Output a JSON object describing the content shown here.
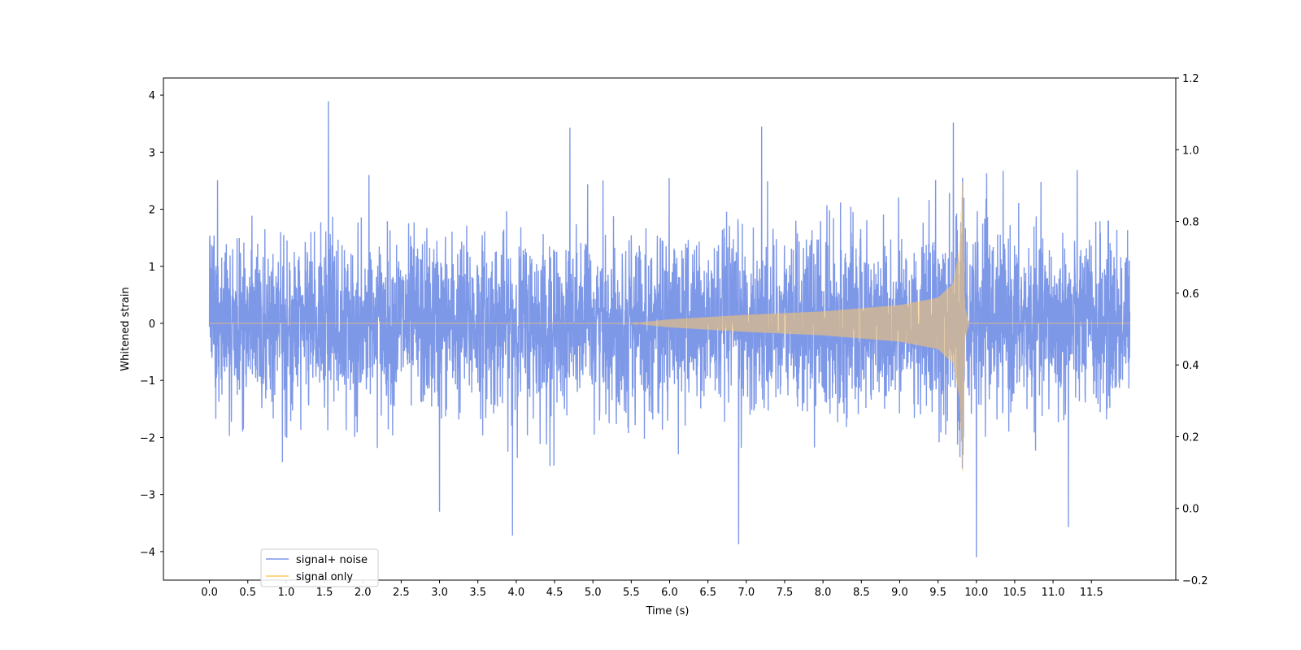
{
  "chart_data": {
    "type": "line",
    "title": "",
    "xlabel": "Time (s)",
    "ylabel": "Whitened strain",
    "xlim": [
      -0.6,
      12.6
    ],
    "ylim": [
      -4.5,
      4.3
    ],
    "y2lim": [
      -0.2,
      1.2
    ],
    "x_ticks": [
      0.0,
      0.5,
      1.0,
      1.5,
      2.0,
      2.5,
      3.0,
      3.5,
      4.0,
      4.5,
      5.0,
      5.5,
      6.0,
      6.5,
      7.0,
      7.5,
      8.0,
      8.5,
      9.0,
      9.5,
      10.0,
      10.5,
      11.0,
      11.5
    ],
    "x_tick_labels": [
      "0.0",
      "0.5",
      "1.0",
      "1.5",
      "2.0",
      "2.5",
      "3.0",
      "3.5",
      "4.0",
      "4.5",
      "5.0",
      "5.5",
      "6.0",
      "6.5",
      "7.0",
      "7.5",
      "8.0",
      "8.5",
      "9.0",
      "9.5",
      "10.0",
      "10.5",
      "11.0",
      "11.5"
    ],
    "y_ticks": [
      -4,
      -3,
      -2,
      -1,
      0,
      1,
      2,
      3,
      4
    ],
    "y_tick_labels": [
      "−4",
      "−3",
      "−2",
      "−1",
      "0",
      "1",
      "2",
      "3",
      "4"
    ],
    "y2_ticks": [
      -0.2,
      0.0,
      0.2,
      0.4,
      0.6,
      0.8,
      1.0,
      1.2
    ],
    "y2_tick_labels": [
      "−0.2",
      "0.0",
      "0.2",
      "0.4",
      "0.6",
      "0.8",
      "1.0",
      "1.2"
    ],
    "grid": false,
    "legend": {
      "placement": "lower-left"
    },
    "series": [
      {
        "name": "signal+ noise",
        "color": "#7b96e8",
        "x_range": [
          0.0,
          12.0
        ],
        "typical_band": [
          -2.0,
          2.2
        ],
        "max": 3.89,
        "min": -4.1,
        "extreme_points": [
          {
            "x": 1.55,
            "y": 3.89
          },
          {
            "x": 9.7,
            "y": 3.52
          },
          {
            "x": 7.2,
            "y": 3.45
          },
          {
            "x": 4.7,
            "y": 3.43
          },
          {
            "x": 6.9,
            "y": -3.87
          },
          {
            "x": 3.95,
            "y": -3.72
          },
          {
            "x": 10.0,
            "y": -4.1
          },
          {
            "x": 3.0,
            "y": -3.3
          },
          {
            "x": 11.2,
            "y": -3.57
          }
        ]
      },
      {
        "name": "signal only",
        "color": "#ffc864",
        "x_range": [
          0.0,
          12.0
        ],
        "envelope": [
          {
            "x": 0.0,
            "y": 0.0
          },
          {
            "x": 5.5,
            "y": 0.0
          },
          {
            "x": 6.0,
            "y": 0.07
          },
          {
            "x": 7.0,
            "y": 0.15
          },
          {
            "x": 8.0,
            "y": 0.21
          },
          {
            "x": 9.0,
            "y": 0.32
          },
          {
            "x": 9.5,
            "y": 0.45
          },
          {
            "x": 9.7,
            "y": 0.7
          },
          {
            "x": 9.78,
            "y": 1.3
          },
          {
            "x": 9.82,
            "y": 2.6
          },
          {
            "x": 9.85,
            "y": 0.3
          },
          {
            "x": 9.9,
            "y": 0.0
          },
          {
            "x": 12.0,
            "y": 0.0
          }
        ]
      }
    ]
  }
}
